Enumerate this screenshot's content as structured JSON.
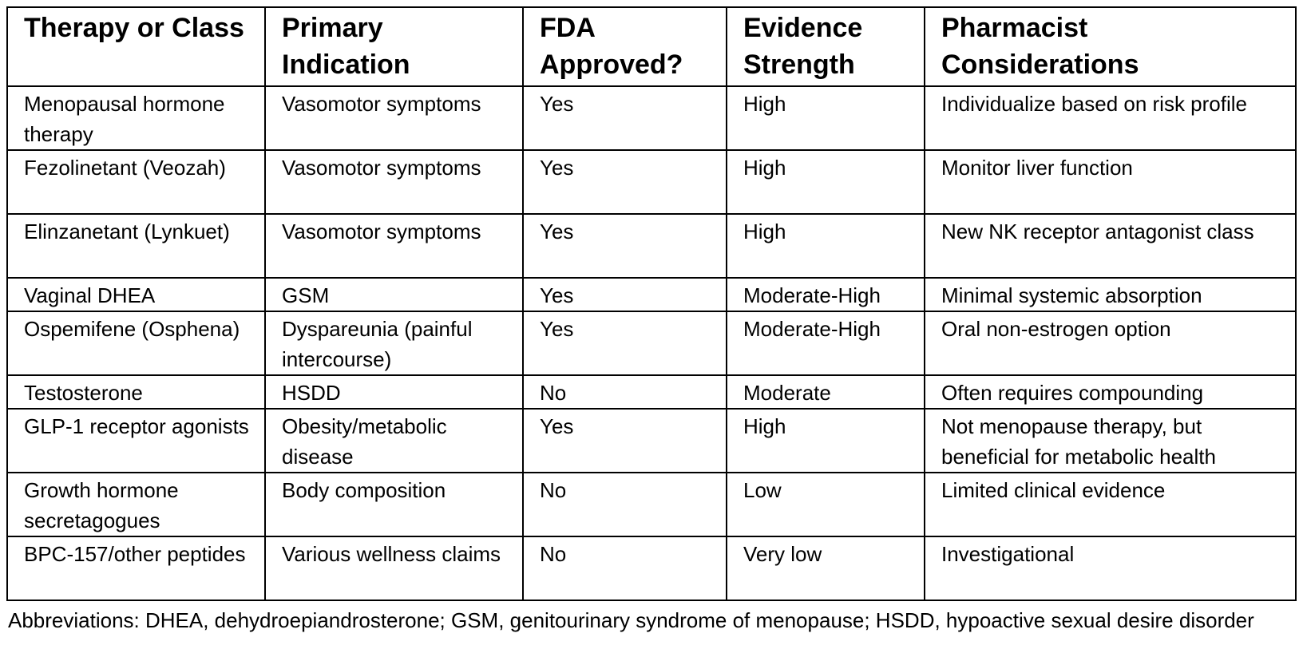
{
  "table": {
    "header": [
      "Therapy or Class",
      "Primary Indication",
      "FDA Approved?",
      "Evidence Strength",
      "Pharmacist Considerations"
    ],
    "rows": [
      [
        "Menopausal hormone therapy",
        "Vasomotor symptoms",
        "Yes",
        "High",
        "Individualize based on risk profile"
      ],
      [
        "Fezolinetant (Veozah)",
        "Vasomotor symptoms",
        "Yes",
        "High",
        "Monitor liver function"
      ],
      [
        "Elinzanetant (Lynkuet)",
        "Vasomotor symptoms",
        "Yes",
        "High",
        "New NK receptor antagonist class"
      ],
      [
        "Vaginal DHEA",
        "GSM",
        "Yes",
        "Moderate-High",
        "Minimal systemic absorption"
      ],
      [
        "Ospemifene (Osphena)",
        "Dyspareunia (painful intercourse)",
        "Yes",
        "Moderate-High",
        "Oral non-estrogen option"
      ],
      [
        "Testosterone",
        "HSDD",
        "No",
        "Moderate",
        "Often requires compounding"
      ],
      [
        "GLP-1 receptor agonists",
        "Obesity/metabolic disease",
        "Yes",
        "High",
        "Not menopause therapy, but beneficial for metabolic health"
      ],
      [
        "Growth hormone secretagogues",
        "Body composition",
        "No",
        "Low",
        "Limited clinical evidence"
      ],
      [
        "BPC-157/other peptides",
        "Various wellness claims",
        "No",
        "Very low",
        "Investigational"
      ]
    ]
  },
  "footnote": "Abbreviations: DHEA, dehydroepiandrosterone; GSM, genitourinary syndrome of menopause; HSDD, hypoactive sexual desire disorder"
}
